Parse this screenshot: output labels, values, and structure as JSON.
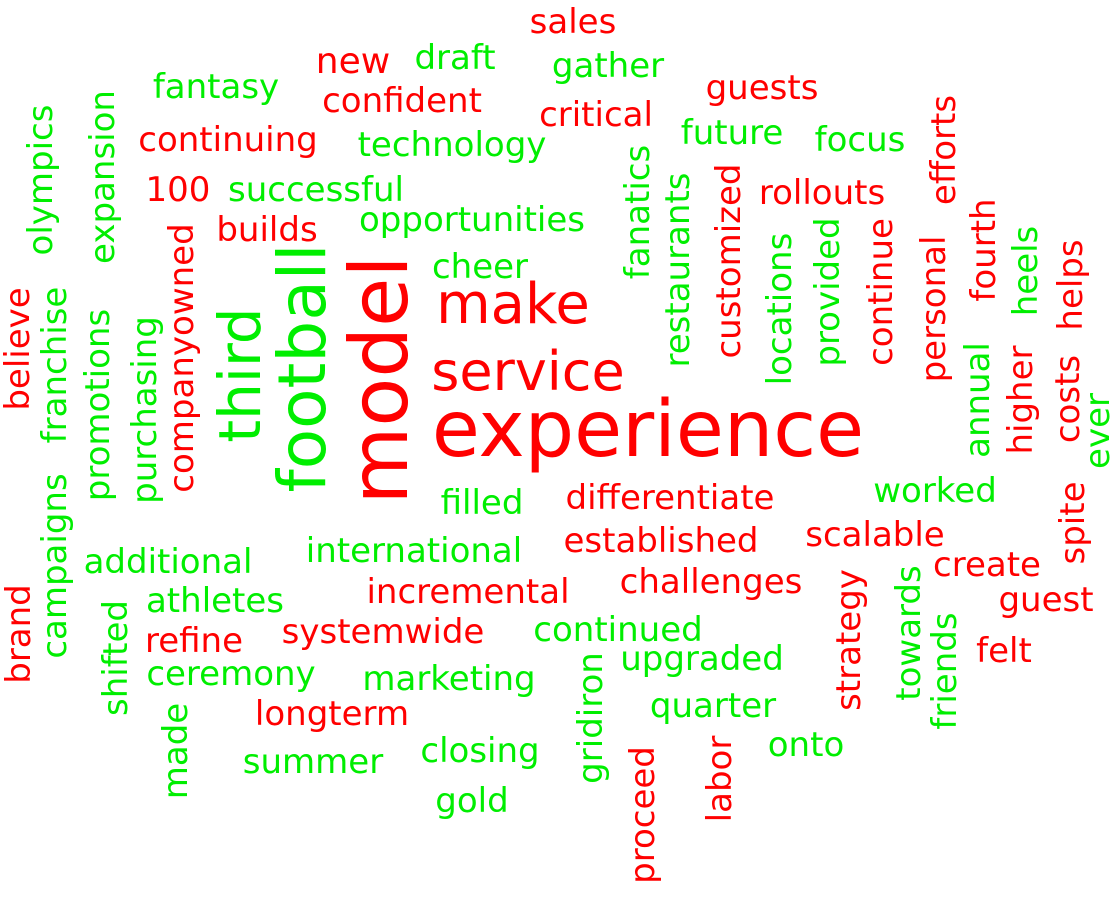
{
  "palette": {
    "red": "#ff0000",
    "green": "#00ee00"
  },
  "words": [
    {
      "text": "experience",
      "color": "red"
    },
    {
      "text": "model",
      "color": "red"
    },
    {
      "text": "football",
      "color": "green"
    },
    {
      "text": "third",
      "color": "green"
    },
    {
      "text": "make",
      "color": "red"
    },
    {
      "text": "service",
      "color": "red"
    },
    {
      "text": "sales",
      "color": "red"
    },
    {
      "text": "new",
      "color": "red"
    },
    {
      "text": "draft",
      "color": "green"
    },
    {
      "text": "gather",
      "color": "green"
    },
    {
      "text": "fantasy",
      "color": "green"
    },
    {
      "text": "confident",
      "color": "red"
    },
    {
      "text": "guests",
      "color": "red"
    },
    {
      "text": "critical",
      "color": "red"
    },
    {
      "text": "continuing",
      "color": "red"
    },
    {
      "text": "technology",
      "color": "green"
    },
    {
      "text": "future",
      "color": "green"
    },
    {
      "text": "focus",
      "color": "green"
    },
    {
      "text": "100",
      "color": "red"
    },
    {
      "text": "successful",
      "color": "green"
    },
    {
      "text": "rollouts",
      "color": "red"
    },
    {
      "text": "builds",
      "color": "red"
    },
    {
      "text": "opportunities",
      "color": "green"
    },
    {
      "text": "cheer",
      "color": "green"
    },
    {
      "text": "olympics",
      "color": "green"
    },
    {
      "text": "expansion",
      "color": "green"
    },
    {
      "text": "efforts",
      "color": "red"
    },
    {
      "text": "fanatics",
      "color": "green"
    },
    {
      "text": "restaurants",
      "color": "green"
    },
    {
      "text": "customized",
      "color": "red"
    },
    {
      "text": "locations",
      "color": "green"
    },
    {
      "text": "provided",
      "color": "green"
    },
    {
      "text": "continue",
      "color": "red"
    },
    {
      "text": "personal",
      "color": "red"
    },
    {
      "text": "fourth",
      "color": "red"
    },
    {
      "text": "heels",
      "color": "green"
    },
    {
      "text": "helps",
      "color": "red"
    },
    {
      "text": "companyowned",
      "color": "red"
    },
    {
      "text": "purchasing",
      "color": "green"
    },
    {
      "text": "promotions",
      "color": "green"
    },
    {
      "text": "franchise",
      "color": "green"
    },
    {
      "text": "believe",
      "color": "red"
    },
    {
      "text": "annual",
      "color": "green"
    },
    {
      "text": "higher",
      "color": "red"
    },
    {
      "text": "costs",
      "color": "red"
    },
    {
      "text": "ever",
      "color": "green"
    },
    {
      "text": "filled",
      "color": "green"
    },
    {
      "text": "differentiate",
      "color": "red"
    },
    {
      "text": "worked",
      "color": "green"
    },
    {
      "text": "international",
      "color": "green"
    },
    {
      "text": "established",
      "color": "red"
    },
    {
      "text": "scalable",
      "color": "red"
    },
    {
      "text": "spite",
      "color": "red"
    },
    {
      "text": "additional",
      "color": "green"
    },
    {
      "text": "create",
      "color": "red"
    },
    {
      "text": "campaigns",
      "color": "green"
    },
    {
      "text": "incremental",
      "color": "red"
    },
    {
      "text": "challenges",
      "color": "red"
    },
    {
      "text": "guest",
      "color": "red"
    },
    {
      "text": "athletes",
      "color": "green"
    },
    {
      "text": "brand",
      "color": "red"
    },
    {
      "text": "shifted",
      "color": "green"
    },
    {
      "text": "systemwide",
      "color": "red"
    },
    {
      "text": "continued",
      "color": "green"
    },
    {
      "text": "refine",
      "color": "red"
    },
    {
      "text": "strategy",
      "color": "red"
    },
    {
      "text": "towards",
      "color": "green"
    },
    {
      "text": "felt",
      "color": "red"
    },
    {
      "text": "friends",
      "color": "green"
    },
    {
      "text": "ceremony",
      "color": "green"
    },
    {
      "text": "upgraded",
      "color": "green"
    },
    {
      "text": "marketing",
      "color": "green"
    },
    {
      "text": "gridiron",
      "color": "green"
    },
    {
      "text": "longterm",
      "color": "red"
    },
    {
      "text": "quarter",
      "color": "green"
    },
    {
      "text": "made",
      "color": "green"
    },
    {
      "text": "onto",
      "color": "green"
    },
    {
      "text": "summer",
      "color": "green"
    },
    {
      "text": "closing",
      "color": "green"
    },
    {
      "text": "labor",
      "color": "red"
    },
    {
      "text": "proceed",
      "color": "red"
    },
    {
      "text": "gold",
      "color": "green"
    }
  ]
}
